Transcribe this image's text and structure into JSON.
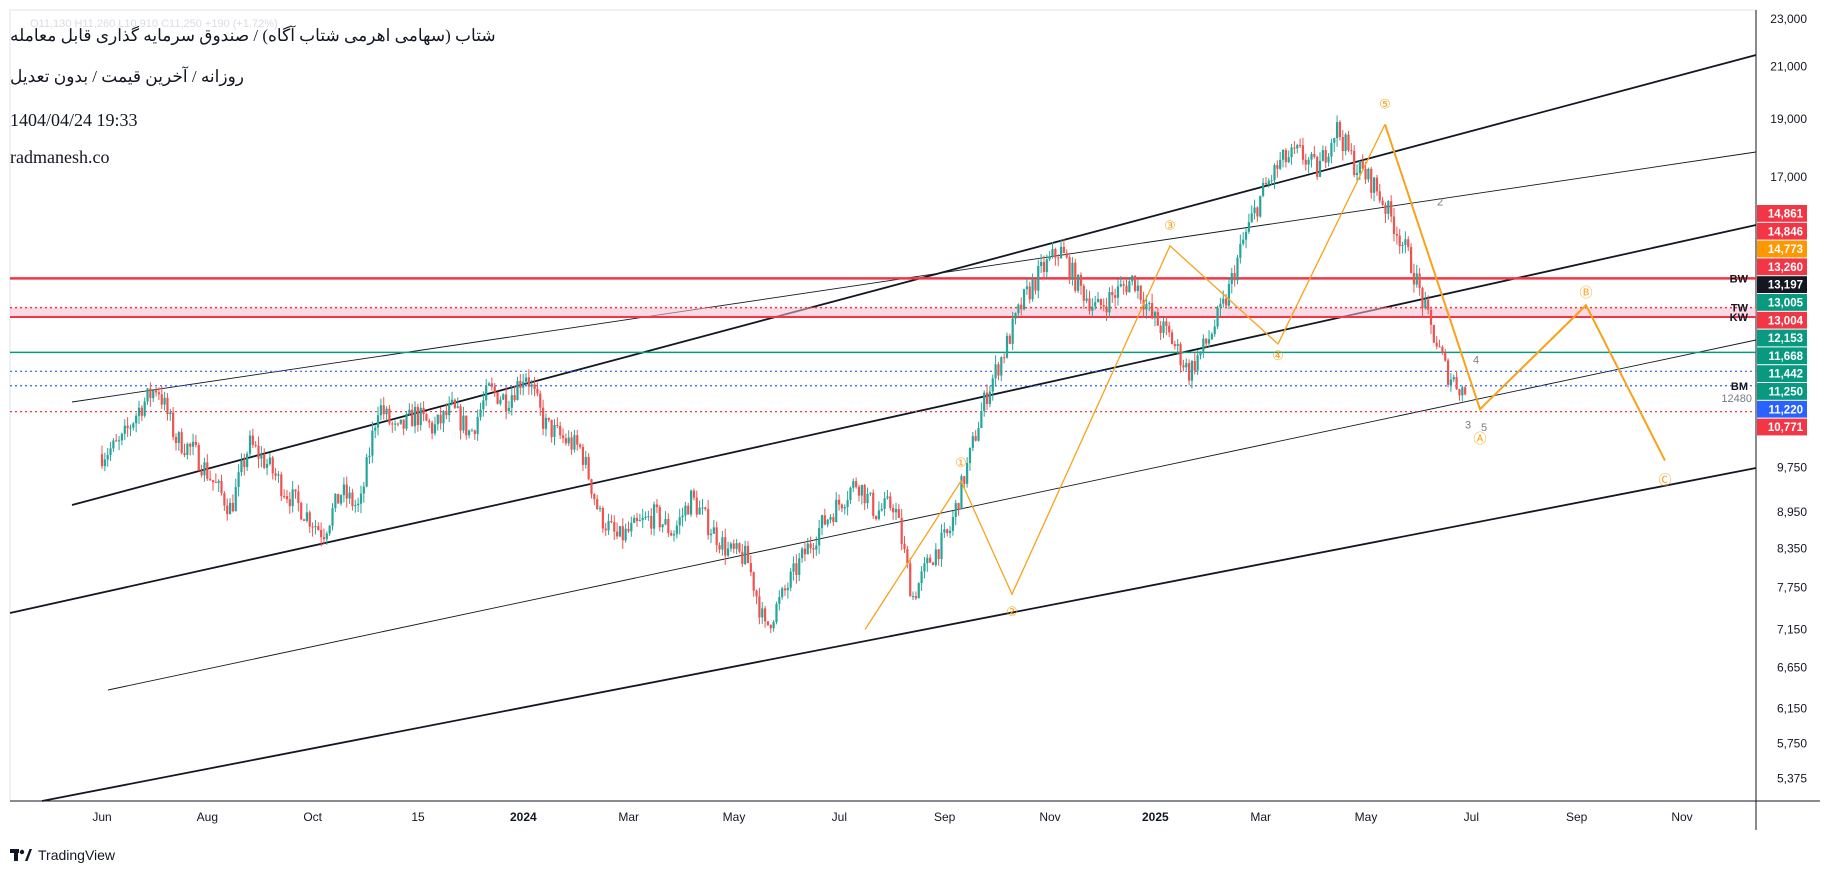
{
  "header": {
    "title": "شتاب (سهامی اهرمی شتاب آگاه) / صندوق سرمایه گذاری قابل معامله",
    "subtitle": "روزانه / آخرین قیمت / بدون تعدیل",
    "datetime": "1404/04/24 19:33",
    "website": "radmanesh.co",
    "ohlc": "O11,130 H11,260 L10,910 C11,250 +190 (+1.72%)"
  },
  "footer": {
    "brand": "TradingView"
  },
  "colors": {
    "up": "#26a69a",
    "down": "#ef5350",
    "wave": "#f7a21b",
    "red_line": "#f23645",
    "green_line": "#089981",
    "blue_dotted": "#2962ff",
    "channel": "#131722",
    "zone": "#f8bbd0"
  },
  "chart_data": {
    "type": "candlestick",
    "timeframe": "daily",
    "y_scale": "log",
    "ylim": [
      5150,
      23400
    ],
    "price_ticks": [
      "23,000",
      "21,000",
      "19,000",
      "17,000",
      "9,750",
      "8,950",
      "8,350",
      "7,750",
      "7,150",
      "6,650",
      "6,150",
      "5,750",
      "5,375"
    ],
    "time_ticks": [
      {
        "label": "Jun",
        "bold": false
      },
      {
        "label": "Aug",
        "bold": false
      },
      {
        "label": "Oct",
        "bold": false
      },
      {
        "label": "15",
        "bold": false
      },
      {
        "label": "2024",
        "bold": true
      },
      {
        "label": "Mar",
        "bold": false
      },
      {
        "label": "May",
        "bold": false
      },
      {
        "label": "Jul",
        "bold": false
      },
      {
        "label": "Sep",
        "bold": false
      },
      {
        "label": "Nov",
        "bold": false
      },
      {
        "label": "2025",
        "bold": true
      },
      {
        "label": "Mar",
        "bold": false
      },
      {
        "label": "May",
        "bold": false
      },
      {
        "label": "Jul",
        "bold": false
      },
      {
        "label": "Sep",
        "bold": false
      },
      {
        "label": "Nov",
        "bold": false
      }
    ],
    "price_path": [
      10000,
      10200,
      10900,
      11400,
      10300,
      10050,
      9500,
      9000,
      10200,
      9800,
      9300,
      8950,
      8600,
      9300,
      9000,
      11000,
      10400,
      10800,
      10500,
      10900,
      10400,
      11300,
      11100,
      11700,
      10600,
      10300,
      10100,
      8900,
      8500,
      8700,
      8900,
      8600,
      9200,
      8700,
      8300,
      8200,
      7150,
      7650,
      8200,
      8700,
      9100,
      9500,
      8950,
      9100,
      7600,
      8200,
      8600,
      9800,
      11200,
      12200,
      13400,
      14200,
      14800,
      13800,
      13200,
      13600,
      14000,
      13000,
      12500,
      11700,
      12400,
      13400,
      15100,
      16500,
      17500,
      17800,
      17200,
      18700,
      17400,
      16800,
      15700,
      14500,
      12900,
      11700,
      11250
    ],
    "levels": [
      {
        "value": 14000,
        "color": "#f23645",
        "style": "solid",
        "width": 2.5,
        "label": "BW"
      },
      {
        "value": 13240,
        "color": "#f23645",
        "style": "dotted",
        "width": 1.5,
        "label": "TW"
      },
      {
        "value": 13004,
        "color": "#f23645",
        "style": "solid",
        "width": 2,
        "label": "KW"
      },
      {
        "value": 12153,
        "color": "#089981",
        "style": "solid",
        "width": 1.5,
        "label": ""
      },
      {
        "value": 11720,
        "color": "#2962ff",
        "style": "dotted",
        "width": 1.2,
        "label": ""
      },
      {
        "value": 11400,
        "color": "#2962ff",
        "style": "dotted",
        "width": 1.2,
        "label": "BM"
      },
      {
        "value": 10850,
        "color": "#f23645",
        "style": "dotted",
        "width": 1.2,
        "label": ""
      }
    ],
    "level_note": "12480",
    "price_badges": [
      {
        "value": "14,861",
        "color": "#f23645"
      },
      {
        "value": "14,846",
        "color": "#f23645"
      },
      {
        "value": "14,773",
        "color": "#ff9800"
      },
      {
        "value": "13,260",
        "color": "#f23645"
      },
      {
        "value": "13,197",
        "color": "#131722"
      },
      {
        "value": "13,005",
        "color": "#089981"
      },
      {
        "value": "13,004",
        "color": "#f23645"
      },
      {
        "value": "12,153",
        "color": "#089981"
      },
      {
        "value": "11,668",
        "color": "#089981"
      },
      {
        "value": "11,442",
        "color": "#089981"
      },
      {
        "value": "11,250",
        "color": "#089981"
      },
      {
        "value": "11,220",
        "color": "#2962ff"
      },
      {
        "value": "10,771",
        "color": "#f23645"
      }
    ],
    "waves": {
      "primary": [
        "①",
        "②",
        "③",
        "④",
        "⑤"
      ],
      "primary_values": [
        9500,
        7650,
        14900,
        12350,
        18800
      ],
      "correction": [
        "Ⓐ",
        "Ⓑ",
        "Ⓒ"
      ],
      "correction_values": [
        10900,
        13300,
        9880
      ],
      "minor": [
        "2",
        "3",
        "4",
        "5"
      ]
    }
  }
}
